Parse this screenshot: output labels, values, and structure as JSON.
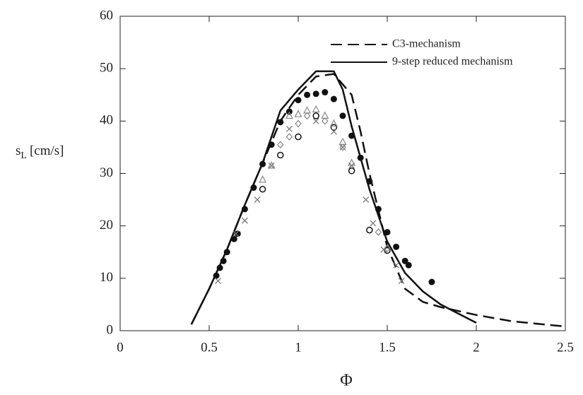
{
  "chart_data": {
    "type": "line",
    "xlabel": "Φ",
    "ylabel": {
      "symbol": "s",
      "subscript": "L",
      "unit": "[cm/s]"
    },
    "xlim": [
      0,
      2.5
    ],
    "xticks": [
      0,
      0.5,
      1,
      1.5,
      2,
      2.5
    ],
    "ylim": [
      0,
      60
    ],
    "yticks": [
      0,
      10,
      20,
      30,
      40,
      50,
      60
    ],
    "grid": false,
    "legend": "top-right",
    "series": [
      {
        "name": "C3-mechanism",
        "color": "#111111",
        "dash": true,
        "x": [
          0.4,
          0.5,
          0.6,
          0.7,
          0.8,
          0.9,
          1.0,
          1.1,
          1.2,
          1.3,
          1.35,
          1.4,
          1.5,
          1.6,
          1.7,
          1.8,
          2.0,
          2.2,
          2.5
        ],
        "values": [
          1.2,
          8,
          15.5,
          24,
          32,
          40,
          45,
          48.5,
          49,
          45,
          38,
          30,
          16,
          8,
          5.5,
          4.5,
          3,
          1.8,
          0.8
        ]
      },
      {
        "name": "9-step reduced mechanism",
        "color": "#111111",
        "dash": false,
        "x": [
          0.4,
          0.5,
          0.6,
          0.7,
          0.8,
          0.9,
          1.0,
          1.1,
          1.2,
          1.25,
          1.3,
          1.4,
          1.5,
          1.6,
          1.7,
          1.8,
          2.0
        ],
        "values": [
          1.2,
          8,
          15.5,
          24,
          32,
          42,
          46,
          49.5,
          49.5,
          46,
          39,
          27,
          17,
          11,
          7.5,
          5,
          1.5
        ]
      },
      {
        "marker": "filled-circle",
        "color": "#111111",
        "x": [
          0.54,
          0.56,
          0.58,
          0.6,
          0.64,
          0.66,
          0.7,
          0.75,
          0.8,
          0.85,
          0.9,
          0.95,
          1.0,
          1.05,
          1.1,
          1.15,
          1.2,
          1.25,
          1.3,
          1.35,
          1.4,
          1.45,
          1.5,
          1.55,
          1.6,
          1.62,
          1.75
        ],
        "values": [
          10.5,
          12,
          13.3,
          15,
          17.5,
          18.5,
          23.2,
          27.3,
          31.8,
          35.5,
          39.8,
          41.8,
          44,
          45,
          45.2,
          45.5,
          44.2,
          41,
          37.2,
          33,
          28.5,
          23.2,
          18.8,
          16,
          13.3,
          12.5,
          9.3
        ]
      },
      {
        "marker": "open-circle",
        "color": "#111111",
        "x": [
          0.8,
          0.9,
          1.0,
          1.1,
          1.2,
          1.3,
          1.4,
          1.5
        ],
        "values": [
          27,
          33.5,
          37,
          41,
          38.8,
          30.5,
          19.2,
          15.3
        ]
      },
      {
        "marker": "triangle",
        "color": "#888888",
        "x": [
          0.8,
          0.85,
          0.95,
          1.0,
          1.05,
          1.1,
          1.15,
          1.2,
          1.25,
          1.3
        ],
        "values": [
          28.8,
          31.5,
          41,
          41.3,
          42,
          42.2,
          41,
          39.5,
          36,
          32
        ]
      },
      {
        "marker": "diamond",
        "color": "#888888",
        "x": [
          0.9,
          0.95,
          1.0,
          1.05,
          1.15,
          1.25,
          1.45,
          1.5
        ],
        "values": [
          35.5,
          37,
          39.5,
          41,
          40,
          35,
          18.8,
          15.7
        ]
      },
      {
        "marker": "cross",
        "color": "#777777",
        "x": [
          0.55,
          0.65,
          0.7,
          0.77,
          0.85,
          0.95,
          1.1,
          1.2,
          1.25,
          1.3,
          1.38,
          1.42,
          1.48,
          1.55,
          1.58
        ],
        "values": [
          9.5,
          18.5,
          21,
          25,
          31.5,
          38.5,
          40,
          38,
          35,
          31.5,
          25,
          20.5,
          15.5,
          12.5,
          9.5
        ]
      }
    ]
  }
}
